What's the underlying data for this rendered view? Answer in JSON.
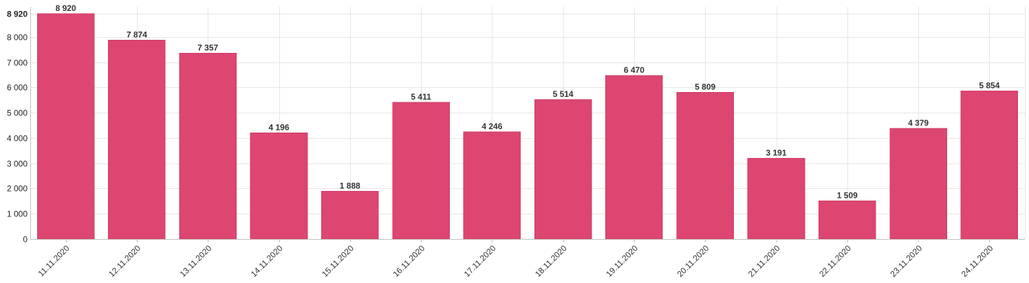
{
  "chart_data": {
    "type": "bar",
    "title": "",
    "xlabel": "",
    "ylabel": "",
    "categories": [
      "11.11.2020",
      "12.11.2020",
      "13.11.2020",
      "14.11.2020",
      "15.11.2020",
      "16.11.2020",
      "17.11.2020",
      "18.11.2020",
      "19.11.2020",
      "20.11.2020",
      "21.11.2020",
      "22.11.2020",
      "23.11.2020",
      "24.11.2020"
    ],
    "values": [
      8920,
      7874,
      7357,
      4196,
      1888,
      5411,
      4246,
      5514,
      6470,
      5809,
      3191,
      1509,
      4379,
      5854
    ],
    "value_labels": [
      "8 920",
      "7 874",
      "7 357",
      "4 196",
      "1 888",
      "5 411",
      "4 246",
      "5 514",
      "6 470",
      "5 809",
      "3 191",
      "1 509",
      "4 379",
      "5 854"
    ],
    "ylim": [
      0,
      8920
    ],
    "y_ticks": [
      0,
      1000,
      2000,
      3000,
      4000,
      5000,
      6000,
      7000,
      8000,
      8920
    ],
    "y_tick_labels": [
      "0",
      "1 000",
      "2 000",
      "3 000",
      "4 000",
      "5 000",
      "6 000",
      "7 000",
      "8 000",
      "8 920"
    ],
    "grid": true,
    "bar_color": "#dc4670",
    "bar_border_color": "#d13d67",
    "legend": "none"
  }
}
